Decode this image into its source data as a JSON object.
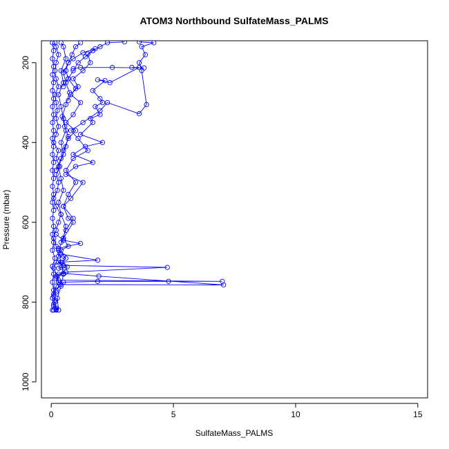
{
  "chart_data": {
    "type": "line",
    "title": "ATOM3 Northbound SulfateMass_PALMS",
    "xlabel": "SulfateMass_PALMS",
    "ylabel": "Pressure (mbar)",
    "xlim": [
      -0.4,
      15.4
    ],
    "ylim": [
      145,
      1040
    ],
    "y_reversed": true,
    "x_ticks": [
      0,
      5,
      10,
      15
    ],
    "x_tick_labels": [
      "0",
      "5",
      "10",
      "15"
    ],
    "y_ticks": [
      200,
      400,
      600,
      800,
      1000
    ],
    "y_tick_labels": [
      "200",
      "400",
      "600",
      "800",
      "1000"
    ],
    "grid": false,
    "legend": "none",
    "series_color": "#0000ff",
    "marker": "open-circle",
    "series": [
      {
        "points": [
          [
            0.2,
            820
          ],
          [
            0.15,
            800
          ],
          [
            0.1,
            780
          ],
          [
            0.2,
            760
          ],
          [
            0.3,
            750
          ],
          [
            0.25,
            735
          ],
          [
            0.1,
            715
          ],
          [
            0.2,
            700
          ],
          [
            0.3,
            685
          ],
          [
            0.2,
            660
          ],
          [
            0.1,
            640
          ],
          [
            0.2,
            620
          ],
          [
            0.3,
            600
          ],
          [
            0.4,
            580
          ],
          [
            0.2,
            560
          ],
          [
            0.1,
            540
          ],
          [
            0.25,
            520
          ],
          [
            0.3,
            500
          ],
          [
            0.2,
            480
          ],
          [
            0.35,
            460
          ],
          [
            0.2,
            440
          ],
          [
            0.3,
            420
          ],
          [
            0.1,
            400
          ],
          [
            0.2,
            380
          ],
          [
            0.3,
            360
          ],
          [
            0.2,
            340
          ],
          [
            0.25,
            320
          ],
          [
            0.2,
            300
          ],
          [
            0.15,
            280
          ],
          [
            0.3,
            260
          ],
          [
            0.2,
            240
          ],
          [
            0.15,
            220
          ],
          [
            0.2,
            200
          ],
          [
            0.3,
            180
          ],
          [
            0.2,
            160
          ],
          [
            0.15,
            150
          ]
        ]
      },
      {
        "points": [
          [
            0.05,
            820
          ],
          [
            0.1,
            810
          ],
          [
            0.05,
            790
          ],
          [
            0.1,
            770
          ],
          [
            0.05,
            750
          ],
          [
            0.1,
            730
          ],
          [
            0.05,
            710
          ],
          [
            0.15,
            690
          ],
          [
            0.05,
            670
          ],
          [
            0.1,
            650
          ],
          [
            0.05,
            630
          ],
          [
            0.1,
            610
          ],
          [
            0.05,
            590
          ],
          [
            0.1,
            570
          ],
          [
            0.05,
            550
          ],
          [
            0.1,
            530
          ],
          [
            0.05,
            510
          ],
          [
            0.1,
            490
          ],
          [
            0.05,
            470
          ],
          [
            0.1,
            450
          ],
          [
            0.05,
            430
          ],
          [
            0.1,
            410
          ],
          [
            0.05,
            390
          ],
          [
            0.1,
            370
          ],
          [
            0.05,
            350
          ],
          [
            0.1,
            330
          ],
          [
            0.05,
            310
          ],
          [
            0.1,
            290
          ],
          [
            0.05,
            270
          ],
          [
            0.1,
            250
          ],
          [
            0.05,
            230
          ],
          [
            0.1,
            210
          ],
          [
            0.05,
            190
          ],
          [
            0.1,
            170
          ],
          [
            0.05,
            150
          ]
        ]
      },
      {
        "points": [
          [
            0.3,
            820
          ],
          [
            0.25,
            790
          ],
          [
            0.4,
            760
          ],
          [
            0.5,
            730
          ],
          [
            0.4,
            700
          ],
          [
            0.3,
            670
          ],
          [
            0.5,
            640
          ],
          [
            0.6,
            610
          ],
          [
            0.4,
            580
          ],
          [
            0.3,
            550
          ],
          [
            0.5,
            520
          ],
          [
            0.4,
            490
          ],
          [
            0.3,
            460
          ],
          [
            0.5,
            430
          ],
          [
            0.4,
            400
          ],
          [
            0.6,
            370
          ],
          [
            0.5,
            340
          ],
          [
            0.4,
            310
          ],
          [
            0.3,
            280
          ],
          [
            0.5,
            250
          ],
          [
            0.4,
            220
          ],
          [
            0.6,
            190
          ],
          [
            0.5,
            160
          ],
          [
            0.4,
            150
          ]
        ]
      },
      {
        "points": [
          [
            0.2,
            770
          ],
          [
            0.5,
            750
          ],
          [
            1.9,
            748
          ],
          [
            4.8,
            748
          ],
          [
            7.0,
            748
          ],
          [
            0.3,
            745
          ],
          [
            0.2,
            735
          ],
          [
            0.5,
            728
          ],
          [
            1.95,
            735
          ],
          [
            7.05,
            757
          ],
          [
            0.4,
            756
          ],
          [
            0.2,
            740
          ]
        ]
      },
      {
        "points": [
          [
            0.3,
            730
          ],
          [
            0.6,
            725
          ],
          [
            4.75,
            713
          ],
          [
            0.5,
            708
          ],
          [
            0.3,
            700
          ],
          [
            1.9,
            695
          ],
          [
            0.4,
            680
          ],
          [
            0.3,
            665
          ],
          [
            1.2,
            653
          ],
          [
            0.5,
            645
          ],
          [
            0.2,
            630
          ]
        ]
      },
      {
        "points": [
          [
            0.3,
            715
          ],
          [
            0.4,
            713
          ],
          [
            0.55,
            714
          ],
          [
            0.65,
            712
          ],
          [
            0.45,
            700
          ],
          [
            0.6,
            690
          ],
          [
            0.5,
            685
          ],
          [
            0.4,
            670
          ],
          [
            0.7,
            660
          ],
          [
            0.5,
            640
          ],
          [
            0.9,
            600
          ],
          [
            0.7,
            590
          ],
          [
            0.5,
            560
          ],
          [
            0.8,
            540
          ],
          [
            1.3,
            500
          ],
          [
            0.6,
            480
          ],
          [
            1.0,
            460
          ],
          [
            1.7,
            450
          ],
          [
            0.9,
            430
          ],
          [
            1.4,
            410
          ],
          [
            2.1,
            400
          ],
          [
            1.2,
            380
          ],
          [
            1.7,
            350
          ],
          [
            1.6,
            340
          ],
          [
            2.0,
            330
          ],
          [
            1.8,
            310
          ],
          [
            2.1,
            300
          ],
          [
            2.0,
            290
          ],
          [
            1.7,
            270
          ],
          [
            2.2,
            245
          ],
          [
            1.9,
            243
          ],
          [
            2.4,
            250
          ],
          [
            3.6,
            212
          ],
          [
            3.3,
            212
          ],
          [
            3.8,
            213
          ],
          [
            2.5,
            212
          ],
          [
            1.2,
            212
          ],
          [
            0.9,
            215
          ]
        ]
      },
      {
        "points": [
          [
            0.4,
            650
          ],
          [
            0.6,
            620
          ],
          [
            0.9,
            590
          ],
          [
            0.5,
            560
          ],
          [
            0.7,
            530
          ],
          [
            1.0,
            500
          ],
          [
            0.6,
            470
          ],
          [
            0.9,
            440
          ],
          [
            1.5,
            420
          ],
          [
            1.1,
            390
          ],
          [
            0.8,
            370
          ],
          [
            1.3,
            350
          ],
          [
            2.0,
            320
          ],
          [
            2.3,
            300
          ],
          [
            3.6,
            328
          ],
          [
            3.9,
            305
          ],
          [
            3.7,
            220
          ],
          [
            3.6,
            200
          ],
          [
            3.85,
            180
          ],
          [
            3.7,
            160
          ],
          [
            4.2,
            150
          ],
          [
            3.6,
            148
          ]
        ]
      },
      {
        "points": [
          [
            0.5,
            420
          ],
          [
            0.7,
            390
          ],
          [
            1.0,
            370
          ],
          [
            0.6,
            350
          ],
          [
            0.9,
            330
          ],
          [
            1.2,
            300
          ],
          [
            0.8,
            280
          ],
          [
            1.1,
            260
          ],
          [
            0.9,
            240
          ],
          [
            1.3,
            220
          ],
          [
            1.6,
            200
          ],
          [
            1.5,
            178
          ],
          [
            1.8,
            165
          ],
          [
            1.3,
            175
          ],
          [
            0.9,
            190
          ],
          [
            0.7,
            200
          ],
          [
            0.6,
            220
          ],
          [
            0.7,
            240
          ],
          [
            1.0,
            265
          ],
          [
            0.8,
            280
          ],
          [
            0.7,
            295
          ]
        ]
      },
      {
        "points": [
          [
            0.5,
            260
          ],
          [
            0.7,
            240
          ],
          [
            0.9,
            220
          ],
          [
            1.1,
            200
          ],
          [
            1.4,
            185
          ],
          [
            1.7,
            170
          ],
          [
            2.0,
            160
          ],
          [
            2.3,
            150
          ],
          [
            3.0,
            148
          ]
        ]
      },
      {
        "points": [
          [
            0.2,
            470
          ],
          [
            0.4,
            440
          ],
          [
            0.6,
            410
          ],
          [
            0.7,
            385
          ],
          [
            0.55,
            360
          ],
          [
            0.45,
            335
          ],
          [
            0.6,
            305
          ],
          [
            0.75,
            275
          ],
          [
            0.6,
            250
          ],
          [
            0.5,
            225
          ],
          [
            0.7,
            200
          ],
          [
            0.85,
            180
          ],
          [
            1.0,
            160
          ],
          [
            1.2,
            150
          ]
        ]
      },
      {
        "points": [
          [
            0.1,
            820
          ],
          [
            0.2,
            818
          ],
          [
            0.3,
            820
          ],
          [
            0.2,
            815
          ],
          [
            0.1,
            805
          ],
          [
            0.15,
            795
          ],
          [
            0.1,
            785
          ],
          [
            0.2,
            775
          ]
        ]
      }
    ]
  }
}
